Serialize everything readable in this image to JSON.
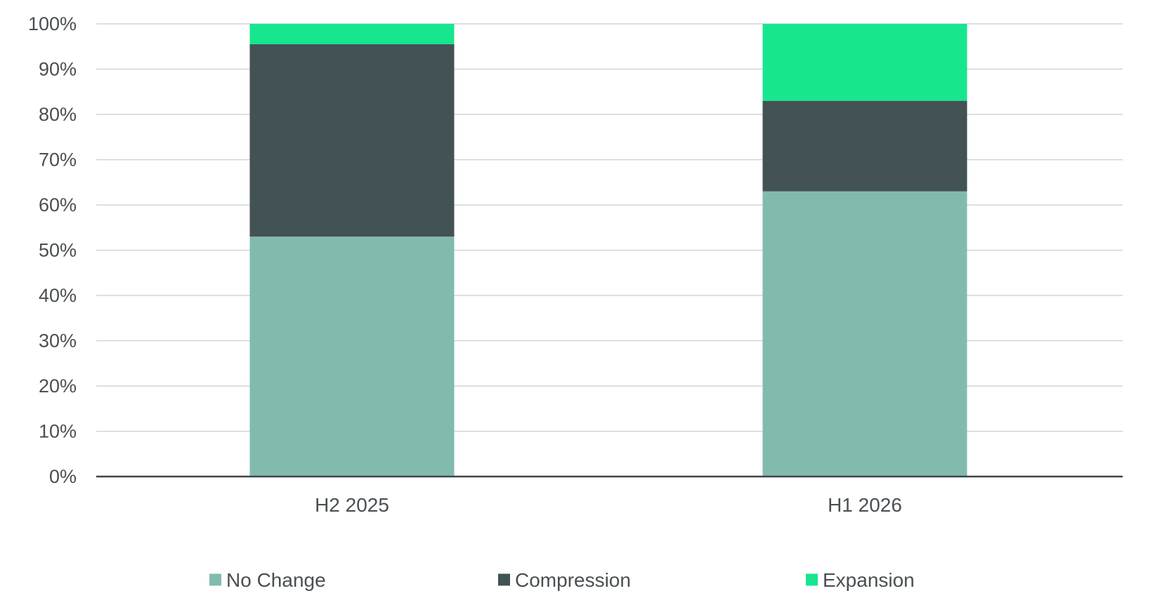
{
  "chart_data": {
    "type": "bar",
    "stacked": true,
    "title": "",
    "xlabel": "",
    "ylabel": "",
    "categories": [
      "H2 2025",
      "H1 2026"
    ],
    "series": [
      {
        "name": "No Change",
        "color": "#82bbad",
        "values": [
          53,
          63
        ]
      },
      {
        "name": "Compression",
        "color": "#425255",
        "values": [
          42.5,
          20
        ]
      },
      {
        "name": "Expansion",
        "color": "#17e68f",
        "values": [
          4.5,
          17
        ]
      }
    ],
    "ylim": [
      0,
      100
    ],
    "yticks": [
      0,
      10,
      20,
      30,
      40,
      50,
      60,
      70,
      80,
      90,
      100
    ],
    "ytick_labels": [
      "0%",
      "10%",
      "20%",
      "30%",
      "40%",
      "50%",
      "60%",
      "70%",
      "80%",
      "90%",
      "100%"
    ],
    "grid": true,
    "legend_position": "bottom"
  }
}
